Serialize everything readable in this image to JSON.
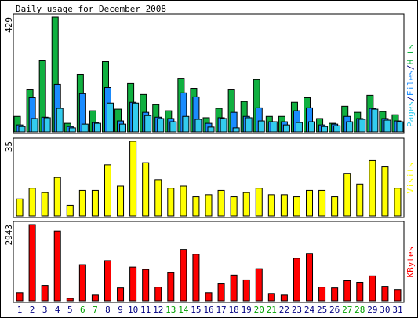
{
  "chart_data": [
    {
      "type": "bar",
      "title": "Daily usage for December 2008",
      "legend_separator": "/",
      "ylim": [
        0,
        429
      ],
      "yticks": [
        429
      ],
      "series": [
        {
          "name": "Pages",
          "color": "#33ccee",
          "values": [
            20,
            50,
            53,
            88,
            15,
            29,
            32,
            108,
            29,
            108,
            61,
            50,
            38,
            58,
            47,
            18,
            50,
            15,
            53,
            41,
            38,
            26,
            35,
            38,
            20,
            23,
            38,
            47,
            85,
            44,
            38
          ]
        },
        {
          "name": "Files",
          "color": "#1a8cff",
          "values": [
            26,
            128,
            55,
            178,
            20,
            143,
            35,
            166,
            41,
            111,
            73,
            55,
            50,
            146,
            131,
            32,
            53,
            73,
            58,
            90,
            38,
            38,
            79,
            90,
            26,
            29,
            58,
            50,
            88,
            50,
            41
          ]
        },
        {
          "name": "Hits",
          "color": "#10b040",
          "values": [
            58,
            160,
            266,
            429,
            32,
            216,
            79,
            263,
            85,
            181,
            140,
            102,
            79,
            201,
            163,
            53,
            88,
            160,
            114,
            196,
            58,
            58,
            111,
            128,
            50,
            32,
            96,
            73,
            137,
            76,
            64
          ]
        }
      ]
    },
    {
      "type": "bar",
      "ylim": [
        0,
        35
      ],
      "yticks": [
        35
      ],
      "series": [
        {
          "name": "Visits",
          "color": "#ffff00",
          "values": [
            8,
            13,
            11,
            18,
            5,
            12,
            12,
            24,
            14,
            35,
            25,
            17,
            13,
            14,
            9,
            10,
            12,
            9,
            11,
            13,
            10,
            10,
            9,
            12,
            12,
            9,
            20,
            15,
            26,
            23,
            13
          ]
        }
      ]
    },
    {
      "type": "bar",
      "ylim": [
        0,
        2943
      ],
      "yticks": [
        2943
      ],
      "categories": [
        "1",
        "2",
        "3",
        "4",
        "5",
        "6",
        "7",
        "8",
        "9",
        "10",
        "11",
        "12",
        "13",
        "14",
        "15",
        "16",
        "17",
        "18",
        "19",
        "20",
        "21",
        "22",
        "23",
        "24",
        "25",
        "26",
        "27",
        "28",
        "29",
        "30",
        "31"
      ],
      "category_colors": [
        "#000080",
        "#000080",
        "#000080",
        "#000080",
        "#000080",
        "#00a000",
        "#00a000",
        "#000080",
        "#000080",
        "#000080",
        "#000080",
        "#000080",
        "#00a000",
        "#00a000",
        "#000080",
        "#000080",
        "#000080",
        "#000080",
        "#000080",
        "#00a000",
        "#00a000",
        "#000080",
        "#000080",
        "#000080",
        "#000080",
        "#000080",
        "#00a000",
        "#00a000",
        "#000080",
        "#000080",
        "#000080"
      ],
      "series": [
        {
          "name": "KBytes",
          "color": "#ff0000",
          "values": [
            310,
            2943,
            589,
            2695,
            93,
            1394,
            217,
            1549,
            496,
            1301,
            1208,
            527,
            1084,
            1983,
            1797,
            310,
            651,
            991,
            806,
            1239,
            279,
            217,
            1642,
            1828,
            527,
            496,
            775,
            713,
            961,
            558,
            434
          ]
        }
      ]
    }
  ]
}
